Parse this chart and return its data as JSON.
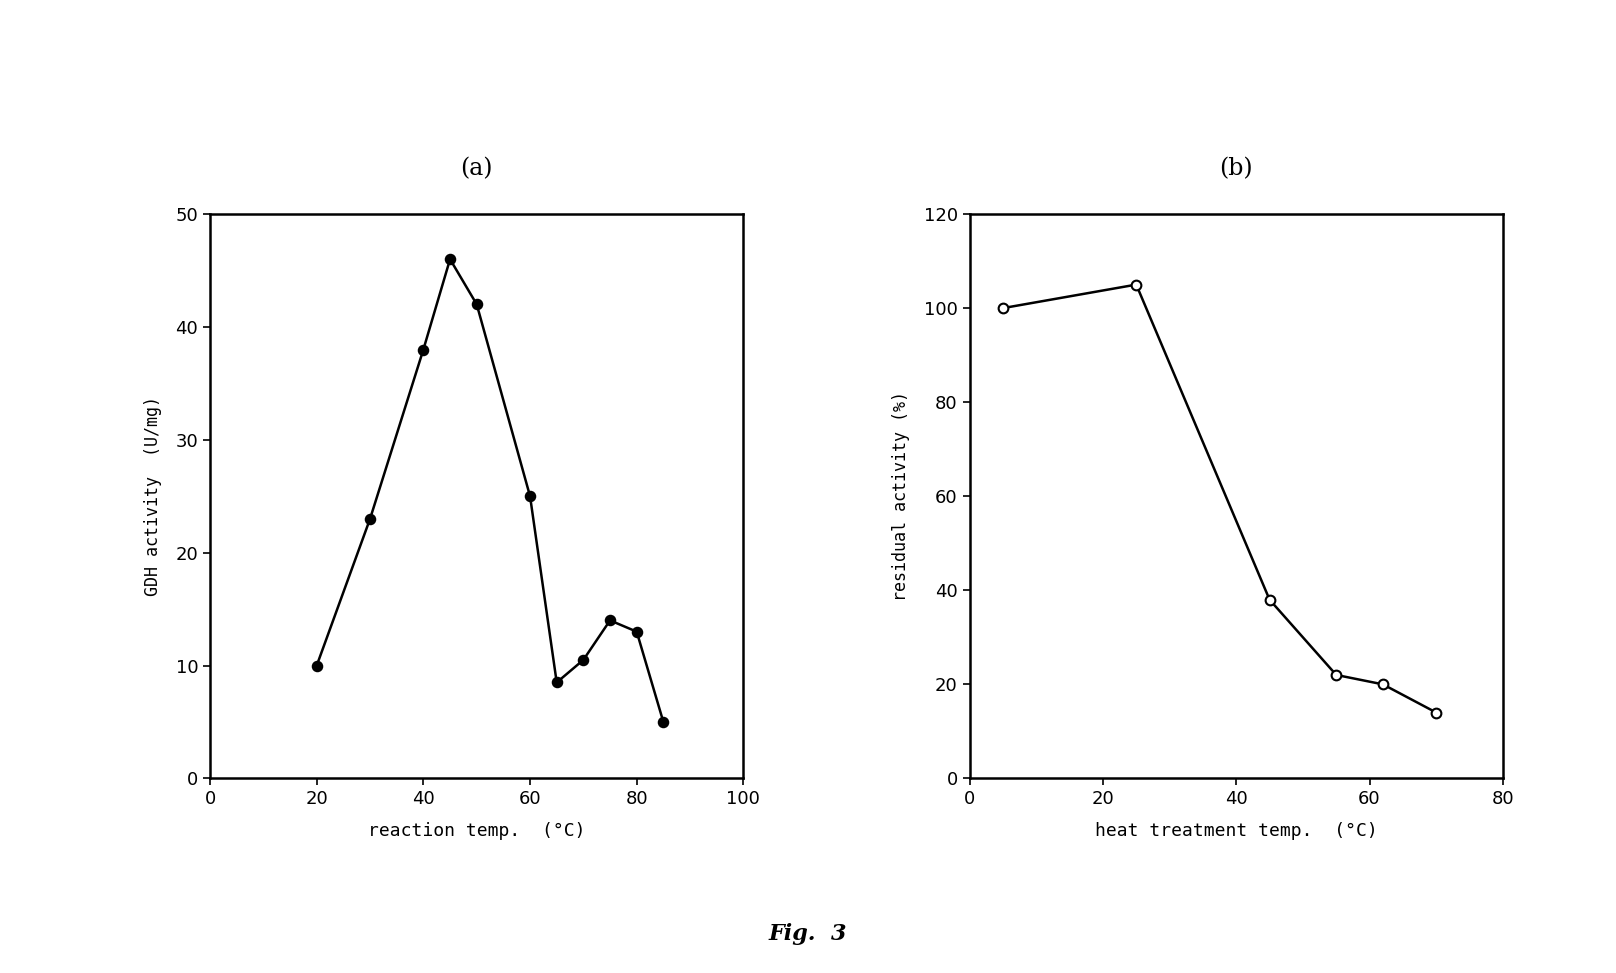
{
  "panel_a": {
    "title": "(a)",
    "xlabel": "reaction temp.  (°C)",
    "ylabel_chars": "GDH activity  (U/mg)",
    "x": [
      20,
      30,
      40,
      45,
      50,
      60,
      65,
      70,
      75,
      80,
      85
    ],
    "y": [
      10,
      23,
      38,
      46,
      42,
      25,
      8.5,
      10.5,
      14,
      13,
      5
    ],
    "xlim": [
      0,
      100
    ],
    "ylim": [
      0,
      50
    ],
    "xticks": [
      0,
      20,
      40,
      60,
      80,
      100
    ],
    "yticks": [
      0,
      10,
      20,
      30,
      40,
      50
    ],
    "marker": "o",
    "marker_fill": "black",
    "marker_size": 7,
    "line_color": "black",
    "line_width": 1.8
  },
  "panel_b": {
    "title": "(b)",
    "xlabel": "heat treatment temp.  (°C)",
    "ylabel_chars": "residual activity (%)",
    "x": [
      5,
      25,
      45,
      55,
      62,
      70
    ],
    "y": [
      100,
      105,
      38,
      22,
      20,
      14
    ],
    "xlim": [
      0,
      80
    ],
    "ylim": [
      0,
      120
    ],
    "xticks": [
      0,
      20,
      40,
      60,
      80
    ],
    "yticks": [
      0,
      20,
      40,
      60,
      80,
      100,
      120
    ],
    "marker": "o",
    "marker_fill": "white",
    "marker_size": 7,
    "line_color": "black",
    "line_width": 1.8
  },
  "fig_label": "Fig.  3",
  "background_color": "#ffffff",
  "title_fontsize": 17,
  "label_fontsize": 13,
  "tick_fontsize": 13,
  "ylabel_fontsize": 12
}
